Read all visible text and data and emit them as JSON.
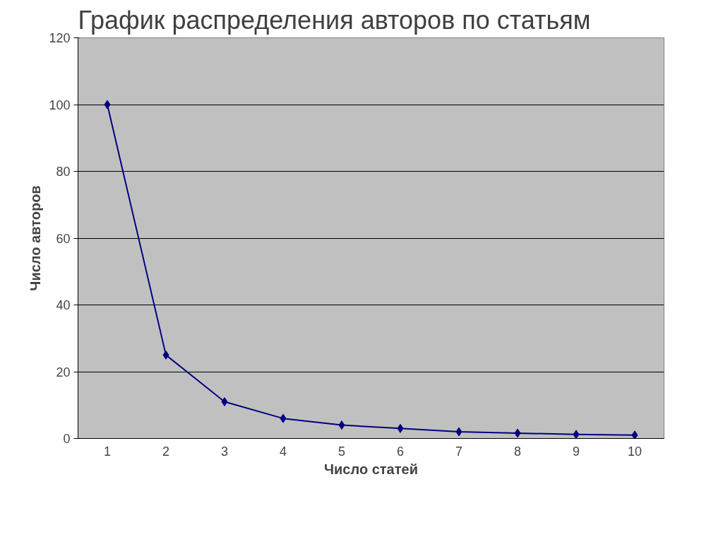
{
  "chart_data": {
    "type": "line",
    "title": "График  распределения авторов по статьям",
    "xlabel": "Число статей",
    "ylabel": "Число авторов",
    "categories": [
      "1",
      "2",
      "3",
      "4",
      "5",
      "6",
      "7",
      "8",
      "9",
      "10"
    ],
    "series": [
      {
        "color": "#000080",
        "values": [
          100,
          25,
          11,
          6,
          4,
          3,
          2,
          1.6,
          1.2,
          1
        ]
      }
    ],
    "ylim": [
      0,
      120
    ],
    "yticks": [
      0,
      20,
      40,
      60,
      80,
      100,
      120
    ],
    "grid": "y",
    "marker": "diamond",
    "line_style": "solid"
  }
}
